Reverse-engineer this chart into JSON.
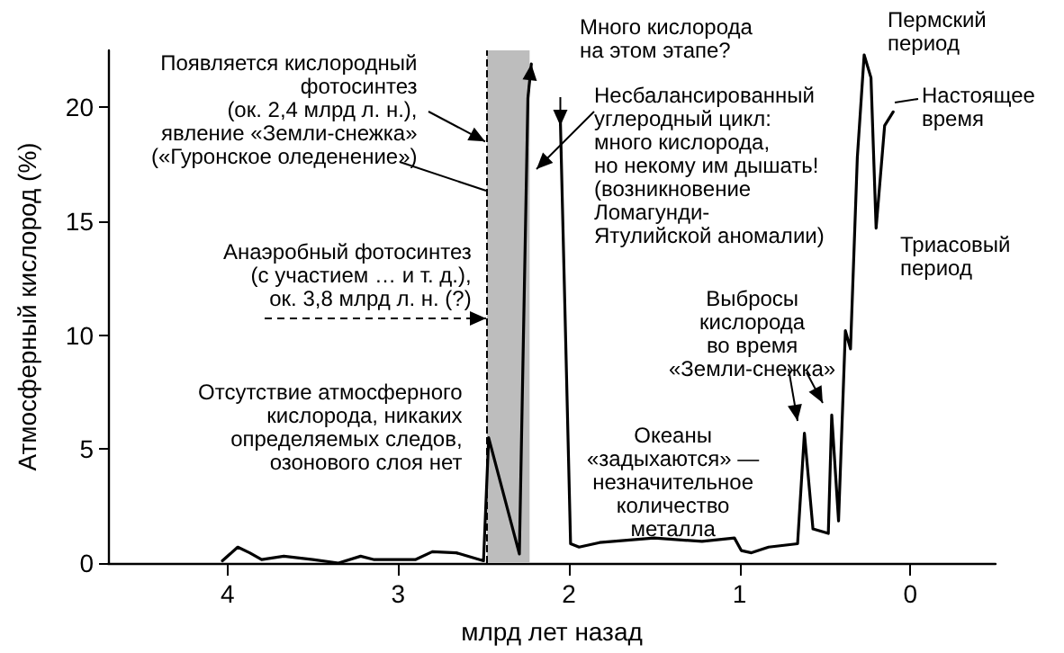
{
  "chart_data": {
    "type": "line",
    "xlabel": "млрд лет назад",
    "ylabel": "Атмосферный кислород (%)",
    "xlim": [
      4.7,
      -0.5
    ],
    "xticks": [
      4,
      3,
      2,
      1,
      0
    ],
    "ylim": [
      0,
      22.5
    ],
    "yticks": [
      0,
      5,
      10,
      15,
      20
    ],
    "marker": "none",
    "line_style": "solid",
    "series": [
      {
        "color": "#000000",
        "x": [
          4.03,
          3.94,
          3.87,
          3.8,
          3.67,
          3.5,
          3.35,
          3.22,
          3.14,
          2.9,
          2.8,
          2.66,
          2.5,
          2.47,
          2.29,
          2.24,
          2.22,
          null,
          2.05,
          1.99,
          1.94,
          1.82,
          1.5,
          1.22,
          1.03,
          0.99,
          0.93,
          0.83,
          0.66,
          0.62,
          0.57,
          0.48,
          0.46,
          0.42,
          0.38,
          0.35,
          0.31,
          0.27,
          0.23,
          0.2,
          0.15,
          0.1
        ],
        "values": [
          0.1,
          0.7,
          0.45,
          0.15,
          0.3,
          0.15,
          0,
          0.3,
          0.15,
          0.15,
          0.5,
          0.45,
          0.1,
          5.5,
          0.4,
          20.4,
          21.9,
          null,
          19.5,
          0.85,
          0.7,
          0.9,
          1.1,
          0.95,
          1.1,
          0.55,
          0.45,
          0.7,
          0.85,
          5.7,
          1.5,
          1.3,
          6.5,
          1.85,
          10.2,
          9.4,
          17.8,
          22.3,
          21.3,
          14.7,
          19.2,
          19.8
        ]
      }
    ],
    "bands": [
      {
        "axis": "x",
        "from": 2.48,
        "to": 2.23,
        "color": "#bdbdbd"
      }
    ],
    "ref_lines": [
      {
        "axis": "x",
        "value": 2.48,
        "line_style": "dashed",
        "color": "#000000"
      }
    ],
    "annotations": [
      {
        "text": "Появляется кислородный\nфотосинтез\n(ок. 2,4 млрд л. н.),\nявление «Земли-снежка»\n(«Гуронское оледенение»)",
        "x": 2.48,
        "y": 18.5
      },
      "Анаэробный фотосинтез\n(с участием … и т. д.),\nок. 3,8 млрд л. н. (?)",
      "Отсутствие атмосферного\nкислорода, никаких\nопределяемых следов,\nозонового слоя нет",
      "Много кислорода\nна этом этапе?",
      "Несбалансированный\nуглеродный цикл:\nмного кислорода,\nно некому им дышать!\n(возникновение\nЛомагунди-\nЯтулийской аномалии)",
      "Пермский\nпериод",
      "Настоящее\nвремя",
      "Триасовый\nпериод",
      "Выбросы\nкислорода\nво время\n«Земли-снежка»",
      "Океаны\n«задыхаются» —\nнезначительное\nколичество\nметалла"
    ]
  }
}
